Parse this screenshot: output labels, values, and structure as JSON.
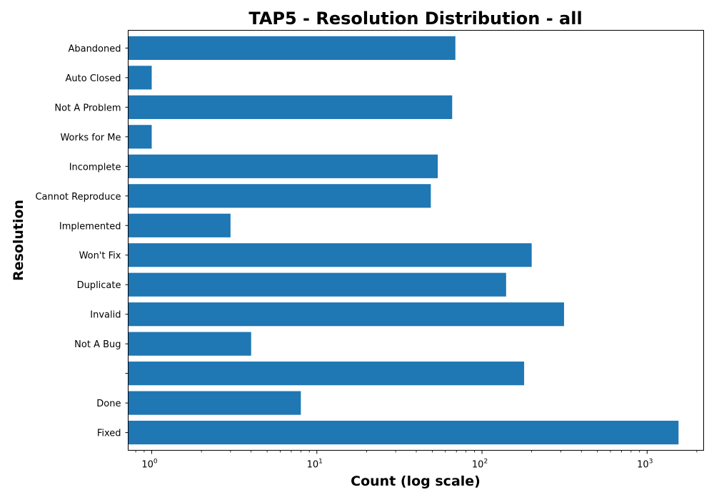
{
  "chart_data": {
    "type": "bar",
    "orientation": "horizontal",
    "title": "TAP5 - Resolution Distribution - all",
    "xlabel": "Count (log scale)",
    "ylabel": "Resolution",
    "x_scale": "log",
    "xlim": [
      0.72,
      2200
    ],
    "x_ticks": [
      {
        "base": "10",
        "exp": "0",
        "value": 1
      },
      {
        "base": "10",
        "exp": "1",
        "value": 10
      },
      {
        "base": "10",
        "exp": "2",
        "value": 100
      },
      {
        "base": "10",
        "exp": "3",
        "value": 1000
      }
    ],
    "grid": false,
    "bar_color": "#1f77b4",
    "categories": [
      "Abandoned",
      "Auto Closed",
      "Not A Problem",
      "Works for Me",
      "Incomplete",
      "Cannot Reproduce",
      "Implemented",
      "Won't Fix",
      "Duplicate",
      "Invalid",
      "Not A Bug",
      "",
      "Done",
      "Fixed"
    ],
    "values": [
      69,
      1,
      66,
      1,
      54,
      49,
      3,
      200,
      140,
      314,
      4,
      180,
      8,
      1550
    ]
  }
}
